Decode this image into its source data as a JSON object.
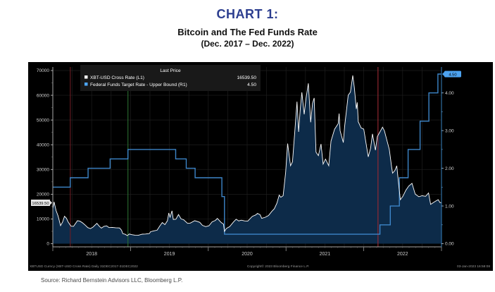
{
  "header": {
    "chart_label": "CHART 1:",
    "title": "Bitcoin and The Fed Funds Rate",
    "period": "(Dec. 2017 – Dec. 2022)"
  },
  "source": "Source:  Richard Bernstein Advisors LLC, Bloomberg L.P.",
  "colors": {
    "header_accent": "#2c3e8f",
    "panel_bg": "#000000",
    "grid": "#1e1e1e",
    "btc_line": "#ffffff",
    "btc_fill": "#0d2b49",
    "fed_line": "#3d85c8",
    "legend_bg": "#191919",
    "axis_text": "#d0d0d0",
    "left_last_box": "#e6e6e6",
    "right_last_box": "#4da3f0",
    "event_red_1": "#6b1d23",
    "event_green": "#2a6e31",
    "event_red_2": "#9c2b33",
    "right_axis_line": "#2e6da0"
  },
  "chart_data": {
    "type": "line",
    "title": "Bitcoin and The Fed Funds Rate",
    "subtitle": "(Dec. 2017 – Dec. 2022)",
    "x_unit": "months since 31-Dec-2017 (0 = Dec 2017, 60 = 31-Dec-2022)",
    "x_year_labels": [
      {
        "label": "2018",
        "m": 6
      },
      {
        "label": "2019",
        "m": 18
      },
      {
        "label": "2020",
        "m": 30
      },
      {
        "label": "2021",
        "m": 42
      },
      {
        "label": "2022",
        "m": 54
      }
    ],
    "x_year_boundaries_m": [
      0,
      12,
      24,
      36,
      48,
      60
    ],
    "left_axis": {
      "ticks": [
        0,
        10000,
        20000,
        30000,
        40000,
        50000,
        60000,
        70000
      ],
      "minor_step": 5000,
      "range": [
        0,
        70000
      ],
      "series": "XBT-USD Cross Rate"
    },
    "right_axis": {
      "ticks": [
        "0.00",
        "1.00",
        "2.00",
        "3.00",
        "4.00"
      ],
      "tick_values": [
        0,
        1,
        2,
        3,
        4
      ],
      "minor_step": 0.5,
      "range": [
        0,
        4.5
      ],
      "series": "Federal Funds Target Rate - Upper Bound"
    },
    "legend": {
      "header": "Last Price",
      "rows": [
        {
          "swatch": "#ffffff",
          "label": "XBT-USD Cross Rate  (L1)",
          "value": "16539.50"
        },
        {
          "swatch": "#4da6ff",
          "label": "Federal Funds Target Rate - Upper Bound  (R1)",
          "value": "4.50"
        }
      ]
    },
    "last_price_labels": {
      "left": "16539.50",
      "right": "4.50"
    },
    "series": [
      {
        "name": "XBT-USD Cross Rate",
        "axis": "left",
        "step": false,
        "last": 16539.5,
        "points": [
          [
            0,
            14100
          ],
          [
            0.2,
            16900
          ],
          [
            0.5,
            13400
          ],
          [
            0.8,
            11300
          ],
          [
            1.2,
            7300
          ],
          [
            1.5,
            8700
          ],
          [
            1.8,
            11100
          ],
          [
            2.1,
            10300
          ],
          [
            2.4,
            8600
          ],
          [
            2.8,
            7100
          ],
          [
            3.2,
            7000
          ],
          [
            3.8,
            9300
          ],
          [
            4.2,
            9100
          ],
          [
            4.6,
            8400
          ],
          [
            5.0,
            7500
          ],
          [
            5.4,
            6500
          ],
          [
            5.8,
            6100
          ],
          [
            6.2,
            6700
          ],
          [
            6.8,
            8200
          ],
          [
            7.2,
            7000
          ],
          [
            7.5,
            6300
          ],
          [
            7.9,
            7000
          ],
          [
            8.3,
            7200
          ],
          [
            8.7,
            6500
          ],
          [
            9.2,
            6600
          ],
          [
            9.7,
            6450
          ],
          [
            10.3,
            6350
          ],
          [
            10.6,
            5500
          ],
          [
            10.8,
            4050
          ],
          [
            11.2,
            3800
          ],
          [
            11.5,
            3250
          ],
          [
            11.8,
            3900
          ],
          [
            12.2,
            3650
          ],
          [
            12.7,
            3450
          ],
          [
            13.2,
            3400
          ],
          [
            13.8,
            3850
          ],
          [
            14.3,
            3900
          ],
          [
            14.9,
            4100
          ],
          [
            15.1,
            4850
          ],
          [
            15.6,
            5200
          ],
          [
            16.1,
            5450
          ],
          [
            16.5,
            7100
          ],
          [
            16.9,
            8550
          ],
          [
            17.3,
            7700
          ],
          [
            17.7,
            9300
          ],
          [
            17.9,
            12400
          ],
          [
            18.1,
            10700
          ],
          [
            18.4,
            13300
          ],
          [
            18.6,
            9800
          ],
          [
            19.0,
            9900
          ],
          [
            19.4,
            11800
          ],
          [
            19.8,
            10000
          ],
          [
            20.2,
            9700
          ],
          [
            20.8,
            8200
          ],
          [
            21.2,
            8300
          ],
          [
            21.9,
            9300
          ],
          [
            22.3,
            9000
          ],
          [
            22.7,
            8600
          ],
          [
            23.1,
            7400
          ],
          [
            23.6,
            6900
          ],
          [
            24.1,
            7250
          ],
          [
            24.6,
            8850
          ],
          [
            25.1,
            9400
          ],
          [
            25.4,
            10200
          ],
          [
            26.0,
            8550
          ],
          [
            26.35,
            7900
          ],
          [
            26.5,
            4950
          ],
          [
            26.8,
            6200
          ],
          [
            27.3,
            6900
          ],
          [
            27.9,
            8800
          ],
          [
            28.3,
            9900
          ],
          [
            28.7,
            9200
          ],
          [
            29.1,
            9500
          ],
          [
            29.6,
            9200
          ],
          [
            30.1,
            9150
          ],
          [
            30.8,
            11050
          ],
          [
            31.3,
            11600
          ],
          [
            31.6,
            12250
          ],
          [
            32.0,
            11700
          ],
          [
            32.25,
            10250
          ],
          [
            32.8,
            10700
          ],
          [
            33.3,
            11400
          ],
          [
            33.8,
            13050
          ],
          [
            34.2,
            14100
          ],
          [
            34.6,
            16400
          ],
          [
            34.95,
            19650
          ],
          [
            35.2,
            18800
          ],
          [
            35.55,
            19400
          ],
          [
            35.95,
            28950
          ],
          [
            36.25,
            40500
          ],
          [
            36.7,
            31500
          ],
          [
            37.0,
            33100
          ],
          [
            37.4,
            47000
          ],
          [
            37.7,
            57400
          ],
          [
            37.95,
            45200
          ],
          [
            38.2,
            54300
          ],
          [
            38.45,
            61200
          ],
          [
            38.8,
            52300
          ],
          [
            39.1,
            58900
          ],
          [
            39.45,
            64800
          ],
          [
            39.8,
            49100
          ],
          [
            40.1,
            56800
          ],
          [
            40.35,
            58900
          ],
          [
            40.63,
            37000
          ],
          [
            41.0,
            35600
          ],
          [
            41.4,
            40300
          ],
          [
            41.73,
            32200
          ],
          [
            42.1,
            34200
          ],
          [
            42.6,
            31500
          ],
          [
            42.95,
            41500
          ],
          [
            43.5,
            46300
          ],
          [
            44.05,
            48500
          ],
          [
            44.2,
            52600
          ],
          [
            44.35,
            45700
          ],
          [
            44.85,
            40900
          ],
          [
            45.05,
            47500
          ],
          [
            45.6,
            60000
          ],
          [
            45.95,
            61300
          ],
          [
            46.3,
            68000
          ],
          [
            46.55,
            63000
          ],
          [
            46.85,
            54500
          ],
          [
            47.0,
            57100
          ],
          [
            47.15,
            49300
          ],
          [
            47.6,
            46800
          ],
          [
            48.0,
            46300
          ],
          [
            48.7,
            35100
          ],
          [
            49.05,
            38600
          ],
          [
            49.35,
            44400
          ],
          [
            49.8,
            37800
          ],
          [
            50.1,
            43300
          ],
          [
            50.9,
            47100
          ],
          [
            51.2,
            45600
          ],
          [
            51.95,
            38100
          ],
          [
            52.3,
            31000
          ],
          [
            52.45,
            28500
          ],
          [
            52.8,
            29600
          ],
          [
            53.1,
            31500
          ],
          [
            53.45,
            22500
          ],
          [
            53.65,
            17800
          ],
          [
            54.05,
            19200
          ],
          [
            54.5,
            21600
          ],
          [
            54.95,
            23300
          ],
          [
            55.45,
            24400
          ],
          [
            55.95,
            20050
          ],
          [
            56.5,
            19000
          ],
          [
            57.0,
            19400
          ],
          [
            57.55,
            19150
          ],
          [
            58.0,
            20500
          ],
          [
            58.33,
            15900
          ],
          [
            58.7,
            16550
          ],
          [
            59.05,
            17150
          ],
          [
            59.5,
            17800
          ],
          [
            59.75,
            16650
          ],
          [
            60,
            16540
          ]
        ]
      },
      {
        "name": "Federal Funds Target Rate - Upper Bound",
        "axis": "right",
        "step": true,
        "last": 4.5,
        "points": [
          [
            0,
            1.5
          ],
          [
            2.7,
            1.75
          ],
          [
            5.45,
            2.0
          ],
          [
            8.85,
            2.25
          ],
          [
            11.6,
            2.5
          ],
          [
            18.97,
            2.25
          ],
          [
            20.6,
            2.0
          ],
          [
            21.97,
            1.75
          ],
          [
            26.1,
            1.25
          ],
          [
            26.5,
            0.25
          ],
          [
            50.5,
            0.5
          ],
          [
            52.1,
            1.0
          ],
          [
            53.5,
            1.75
          ],
          [
            54.85,
            2.5
          ],
          [
            56.7,
            3.25
          ],
          [
            58.05,
            4.0
          ],
          [
            59.45,
            4.5
          ],
          [
            60,
            4.5
          ]
        ]
      }
    ],
    "event_lines": [
      {
        "m": 2.7,
        "color_key": "event_red_1"
      },
      {
        "m": 11.6,
        "color_key": "event_green"
      },
      {
        "m": 50.2,
        "color_key": "event_red_2"
      }
    ],
    "footer": {
      "left": "XBTUSD Curncy (XBT-USD Cross Rate)  Daily 31DEC2017-31DEC2022",
      "center": "Copyright© 2023 Bloomberg Finance L.P.",
      "right": "03-Jan-2023 16:58:08"
    }
  }
}
